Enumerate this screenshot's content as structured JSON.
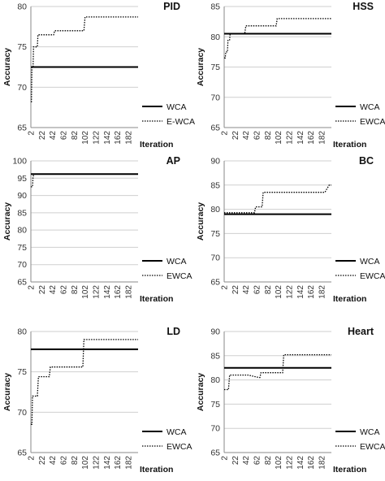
{
  "chart_data": [
    {
      "type": "line",
      "title": "PID",
      "xlabel": "Iteration",
      "ylabel": "Accuracy",
      "ylim": [
        65,
        80
      ],
      "yticks": [
        65,
        70,
        75,
        80
      ],
      "xticks": [
        2,
        22,
        42,
        62,
        82,
        102,
        122,
        142,
        162,
        182
      ],
      "xlim": [
        2,
        200
      ],
      "legend_position": "bottom-right",
      "series": [
        {
          "name": "WCA",
          "style": "solid",
          "x": [
            2,
            200
          ],
          "values": [
            72.5,
            72.5
          ]
        },
        {
          "name": "E-WCA",
          "style": "dotted",
          "x": [
            2,
            3,
            4,
            6,
            7,
            9,
            10,
            14,
            15,
            18,
            19,
            44,
            46,
            60,
            62,
            100,
            102,
            200
          ],
          "values": [
            68.2,
            68.2,
            72.5,
            72.5,
            75.0,
            75.0,
            75.0,
            75.0,
            76.5,
            76.5,
            76.5,
            76.5,
            77.0,
            77.0,
            77.0,
            77.0,
            78.7,
            78.7
          ]
        }
      ]
    },
    {
      "type": "line",
      "title": "HSS",
      "xlabel": "Iteration",
      "ylabel": "Accuracy",
      "ylim": [
        65,
        85
      ],
      "yticks": [
        65,
        70,
        75,
        80,
        85
      ],
      "xticks": [
        2,
        22,
        42,
        62,
        82,
        102,
        122,
        142,
        162,
        182
      ],
      "xlim": [
        2,
        200
      ],
      "legend_position": "bottom-right",
      "series": [
        {
          "name": "WCA",
          "style": "solid",
          "x": [
            2,
            200
          ],
          "values": [
            80.5,
            80.5
          ]
        },
        {
          "name": "EWCA",
          "style": "dotted",
          "x": [
            2,
            4,
            5,
            8,
            9,
            12,
            13,
            40,
            42,
            98,
            100,
            200
          ],
          "values": [
            76.5,
            76.5,
            77.5,
            77.5,
            79.5,
            79.5,
            80.5,
            80.5,
            81.8,
            81.8,
            83.0,
            83.0
          ]
        }
      ]
    },
    {
      "type": "line",
      "title": "AP",
      "xlabel": "Iteration",
      "ylabel": "Accuracy",
      "ylim": [
        65,
        100
      ],
      "yticks": [
        65,
        70,
        75,
        80,
        85,
        90,
        95,
        100
      ],
      "xticks": [
        2,
        22,
        42,
        62,
        82,
        102,
        122,
        142,
        162,
        182
      ],
      "xlim": [
        2,
        200
      ],
      "legend_position": "bottom-right",
      "series": [
        {
          "name": "WCA",
          "style": "solid",
          "x": [
            2,
            200
          ],
          "values": [
            96.2,
            96.2
          ]
        },
        {
          "name": "EWCA",
          "style": "dotted",
          "x": [
            2,
            5,
            6,
            8,
            200
          ],
          "values": [
            92.5,
            92.5,
            95.5,
            96.2,
            96.2
          ]
        }
      ]
    },
    {
      "type": "line",
      "title": "BC",
      "xlabel": "Iteration",
      "ylabel": "Accuracy",
      "ylim": [
        65,
        90
      ],
      "yticks": [
        65,
        70,
        75,
        80,
        85,
        90
      ],
      "xticks": [
        2,
        22,
        42,
        62,
        82,
        102,
        122,
        142,
        162,
        182
      ],
      "xlim": [
        2,
        200
      ],
      "legend_position": "bottom-right",
      "series": [
        {
          "name": "WCA",
          "style": "solid",
          "x": [
            2,
            200
          ],
          "values": [
            79.0,
            79.0
          ]
        },
        {
          "name": "EWCA",
          "style": "dotted",
          "x": [
            2,
            58,
            60,
            72,
            74,
            188,
            192,
            196,
            200
          ],
          "values": [
            79.3,
            79.3,
            80.5,
            80.5,
            83.5,
            83.5,
            84.3,
            85.0,
            85.0
          ]
        }
      ]
    },
    {
      "type": "line",
      "title": "LD",
      "xlabel": "Iteration",
      "ylabel": "Accuracy",
      "ylim": [
        65,
        80
      ],
      "yticks": [
        65,
        70,
        75,
        80
      ],
      "xticks": [
        2,
        22,
        42,
        62,
        82,
        102,
        122,
        142,
        162,
        182
      ],
      "xlim": [
        2,
        200
      ],
      "legend_position": "bottom-right",
      "series": [
        {
          "name": "WCA",
          "style": "solid",
          "x": [
            2,
            200
          ],
          "values": [
            77.8,
            77.8
          ]
        },
        {
          "name": "EWCA",
          "style": "dotted",
          "x": [
            2,
            4,
            5,
            14,
            16,
            36,
            38,
            54,
            56,
            98,
            100,
            200
          ],
          "values": [
            68.5,
            68.5,
            72.0,
            72.0,
            74.4,
            74.4,
            75.6,
            75.6,
            75.6,
            75.6,
            79.0,
            79.0
          ]
        }
      ]
    },
    {
      "type": "line",
      "title": "Heart",
      "xlabel": "Iteration",
      "ylabel": "Accuracy",
      "ylim": [
        65,
        90
      ],
      "yticks": [
        65,
        70,
        75,
        80,
        85,
        90
      ],
      "xticks": [
        2,
        22,
        42,
        62,
        82,
        102,
        122,
        142,
        162,
        182
      ],
      "xlim": [
        2,
        200
      ],
      "legend_position": "bottom-right",
      "series": [
        {
          "name": "WCA",
          "style": "solid",
          "x": [
            2,
            200
          ],
          "values": [
            82.5,
            82.5
          ]
        },
        {
          "name": "EWCA",
          "style": "dotted",
          "x": [
            2,
            10,
            12,
            44,
            46,
            66,
            68,
            70,
            72,
            110,
            112,
            200
          ],
          "values": [
            78.0,
            78.0,
            81.0,
            81.0,
            81.0,
            80.5,
            80.5,
            81.5,
            81.5,
            81.5,
            85.2,
            85.2
          ]
        }
      ]
    }
  ]
}
